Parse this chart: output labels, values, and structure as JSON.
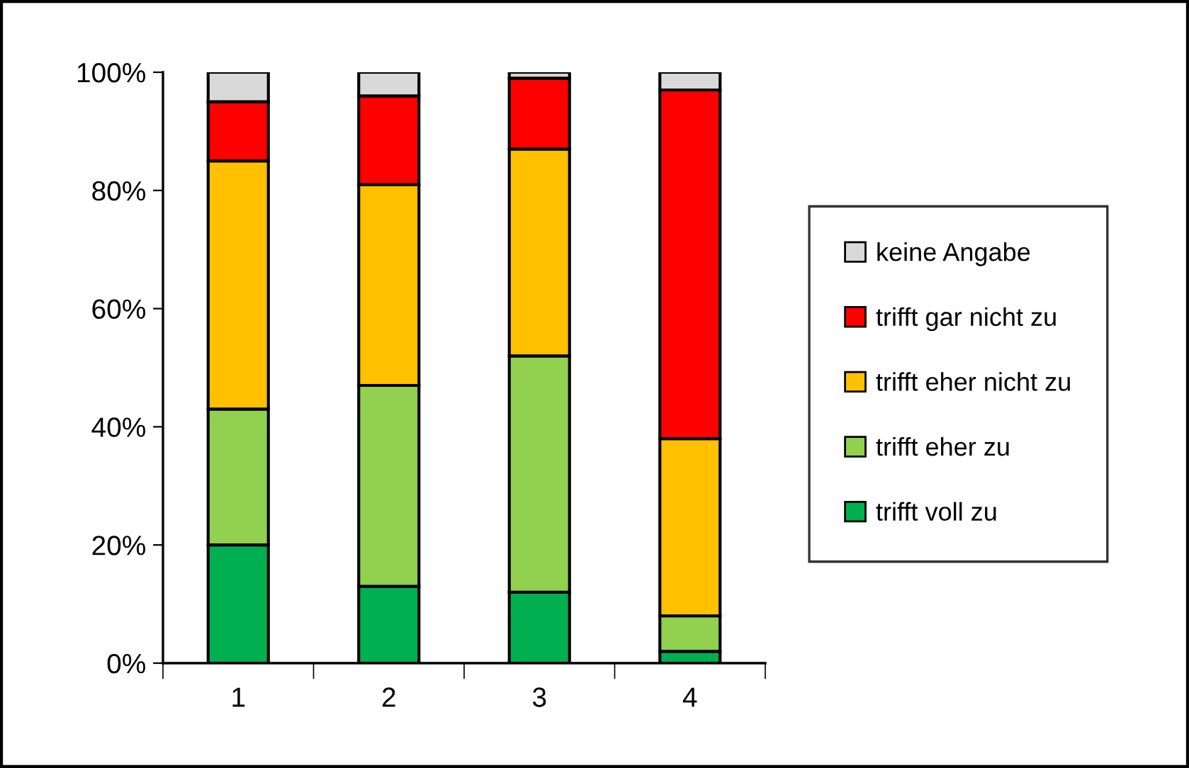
{
  "chart_data": {
    "type": "bar",
    "stacked": true,
    "categories": [
      "1",
      "2",
      "3",
      "4"
    ],
    "series": [
      {
        "name": "trifft voll zu",
        "color": "#00b050",
        "values": [
          20,
          13,
          12,
          2
        ]
      },
      {
        "name": "trifft eher zu",
        "color": "#92d050",
        "values": [
          23,
          34,
          40,
          6
        ]
      },
      {
        "name": "trifft eher nicht zu",
        "color": "#ffc000",
        "values": [
          42,
          34,
          35,
          30
        ]
      },
      {
        "name": "trifft gar nicht zu",
        "color": "#ff0000",
        "values": [
          10,
          15,
          12,
          59
        ]
      },
      {
        "name": "keine Angabe",
        "color": "#d9d9d9",
        "values": [
          5,
          4,
          1,
          3
        ]
      }
    ],
    "ylim": [
      0,
      100
    ],
    "yticks": [
      {
        "value": 0,
        "label": "0%"
      },
      {
        "value": 20,
        "label": "20%"
      },
      {
        "value": 40,
        "label": "40%"
      },
      {
        "value": 60,
        "label": "60%"
      },
      {
        "value": 80,
        "label": "80%"
      },
      {
        "value": 100,
        "label": "100%"
      }
    ],
    "grid": false,
    "legend": "right"
  }
}
